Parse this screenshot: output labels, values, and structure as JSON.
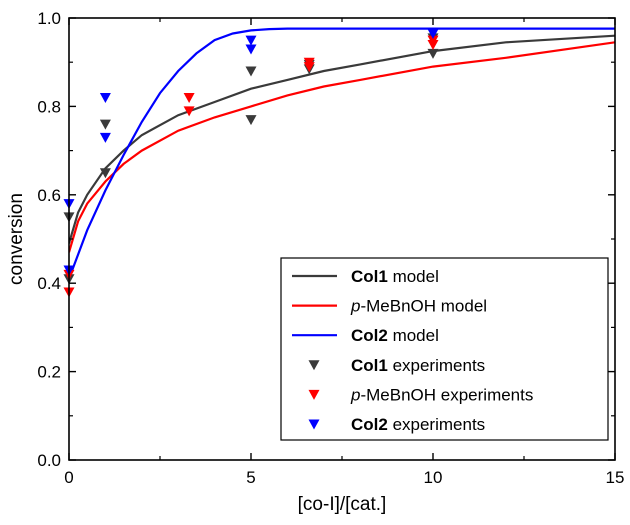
{
  "chart_data": {
    "type": "line",
    "xlabel": "[co-I]/[cat.]",
    "ylabel": "conversion",
    "xlim": [
      0,
      15
    ],
    "ylim": [
      0.0,
      1.0
    ],
    "xticks": [
      "0",
      "5",
      "10",
      "15"
    ],
    "yticks": [
      "0.0",
      "0.2",
      "0.4",
      "0.6",
      "0.8",
      "1.0"
    ],
    "grid": false,
    "legend_position": "bottom-right",
    "series": [
      {
        "bold": "Col1",
        "plain": " model",
        "italic": "",
        "kind": "line",
        "color": "#3a3a3a",
        "x": [
          0,
          0.25,
          0.5,
          1,
          1.5,
          2,
          3,
          4,
          5,
          6,
          7,
          8,
          10,
          12,
          15
        ],
        "y": [
          0.49,
          0.56,
          0.6,
          0.66,
          0.7,
          0.735,
          0.78,
          0.81,
          0.84,
          0.86,
          0.88,
          0.895,
          0.925,
          0.945,
          0.96
        ]
      },
      {
        "bold": "",
        "plain": "-MeBnOH model",
        "italic": "p",
        "kind": "line",
        "color": "#ff0000",
        "x": [
          0,
          0.25,
          0.5,
          1,
          1.5,
          2,
          3,
          4,
          5,
          6,
          7,
          8,
          10,
          12,
          15
        ],
        "y": [
          0.47,
          0.54,
          0.58,
          0.63,
          0.67,
          0.7,
          0.745,
          0.775,
          0.8,
          0.825,
          0.845,
          0.86,
          0.89,
          0.91,
          0.945
        ]
      },
      {
        "bold": "Col2",
        "plain": " model",
        "italic": "",
        "kind": "line",
        "color": "#0000ff",
        "x": [
          0,
          0.5,
          1,
          1.5,
          2,
          2.5,
          3,
          3.5,
          4,
          4.5,
          5,
          5.5,
          6,
          8,
          10,
          12,
          15
        ],
        "y": [
          0.41,
          0.52,
          0.61,
          0.69,
          0.765,
          0.83,
          0.88,
          0.92,
          0.95,
          0.965,
          0.972,
          0.975,
          0.976,
          0.976,
          0.976,
          0.976,
          0.976
        ]
      },
      {
        "bold": "Col1",
        "plain": " experiments",
        "italic": "",
        "kind": "scatter",
        "color": "#3a3a3a",
        "x": [
          0,
          0,
          1,
          1,
          5,
          5,
          6.6,
          6.6,
          10,
          10
        ],
        "y": [
          0.55,
          0.41,
          0.76,
          0.65,
          0.88,
          0.77,
          0.895,
          0.885,
          0.955,
          0.92
        ]
      },
      {
        "bold": "",
        "plain": "-MeBnOH experiments",
        "italic": "p",
        "kind": "scatter",
        "color": "#ff0000",
        "x": [
          0,
          0,
          3.3,
          3.3,
          6.6,
          6.6,
          10,
          10
        ],
        "y": [
          0.42,
          0.38,
          0.82,
          0.79,
          0.9,
          0.89,
          0.95,
          0.94
        ]
      },
      {
        "bold": "Col2",
        "plain": " experiments",
        "italic": "",
        "kind": "scatter",
        "color": "#0000ff",
        "x": [
          0,
          0,
          1,
          1,
          5,
          5,
          10
        ],
        "y": [
          0.58,
          0.43,
          0.82,
          0.73,
          0.95,
          0.93,
          0.965
        ]
      }
    ]
  }
}
